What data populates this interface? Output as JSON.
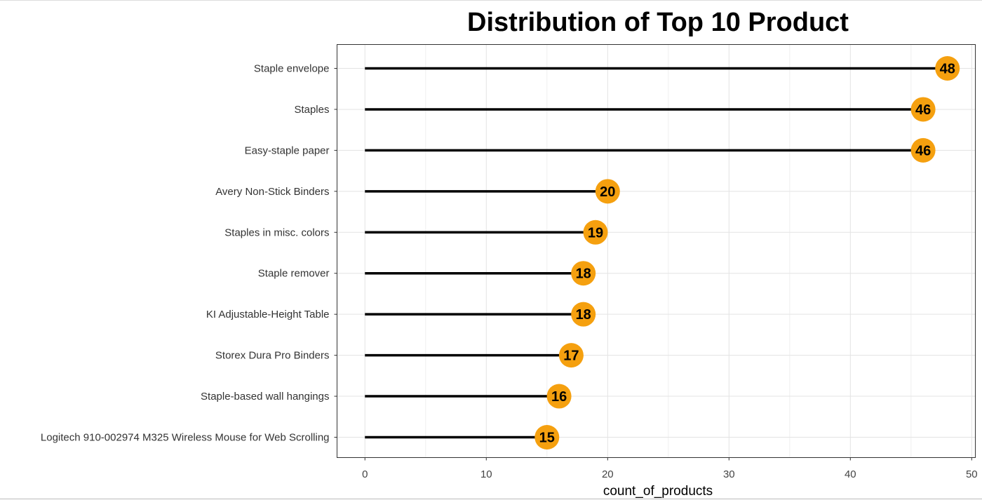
{
  "chart_data": {
    "type": "lollipop",
    "title": "Distribution of Top 10 Product",
    "xlabel": "count_of_products",
    "ylabel": "",
    "xlim": [
      -2.3,
      50.3
    ],
    "xticks": [
      0,
      10,
      20,
      30,
      40,
      50
    ],
    "grid": true,
    "categories": [
      "Staple envelope",
      "Staples",
      "Easy-staple paper",
      "Avery Non-Stick Binders",
      "Staples in misc. colors",
      "Staple remover",
      "KI Adjustable-Height Table",
      "Storex Dura Pro Binders",
      "Staple-based wall hangings",
      "Logitech 910-002974 M325 Wireless Mouse for Web Scrolling"
    ],
    "values": [
      48,
      46,
      46,
      20,
      19,
      18,
      18,
      17,
      16,
      15
    ],
    "point_color": "#F5A00F",
    "line_color": "#000000"
  }
}
